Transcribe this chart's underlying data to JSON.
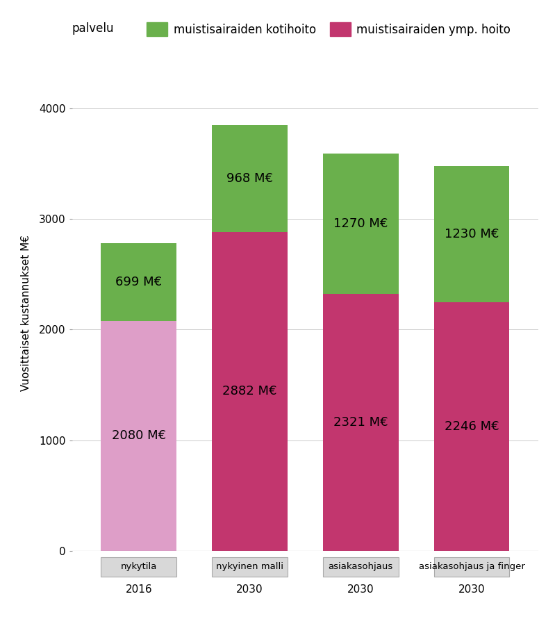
{
  "cat_labels": [
    "nykytila",
    "nykyinen malli",
    "asiakasohjaus",
    "asiakasohjaus ja finger"
  ],
  "year_labels": [
    "2016",
    "2030",
    "2030",
    "2030"
  ],
  "pink_values": [
    2080,
    2882,
    2321,
    2246
  ],
  "green_values": [
    699,
    968,
    1270,
    1230
  ],
  "pink_colors": [
    "#de9ec8",
    "#c2366e",
    "#c2366e",
    "#c2366e"
  ],
  "green_color": "#6ab04c",
  "pink_label": "muistisairaiden ymp. hoito",
  "green_label": "muistisairaiden kotihoito",
  "legend_prefix": "palvelu",
  "ylabel": "Vuosittaiset kustannukset M€",
  "ylim": [
    0,
    4300
  ],
  "yticks": [
    0,
    1000,
    2000,
    3000,
    4000
  ],
  "background_color": "#ffffff",
  "bar_width": 0.68,
  "label_fontsize": 13,
  "axis_fontsize": 11,
  "legend_fontsize": 12
}
